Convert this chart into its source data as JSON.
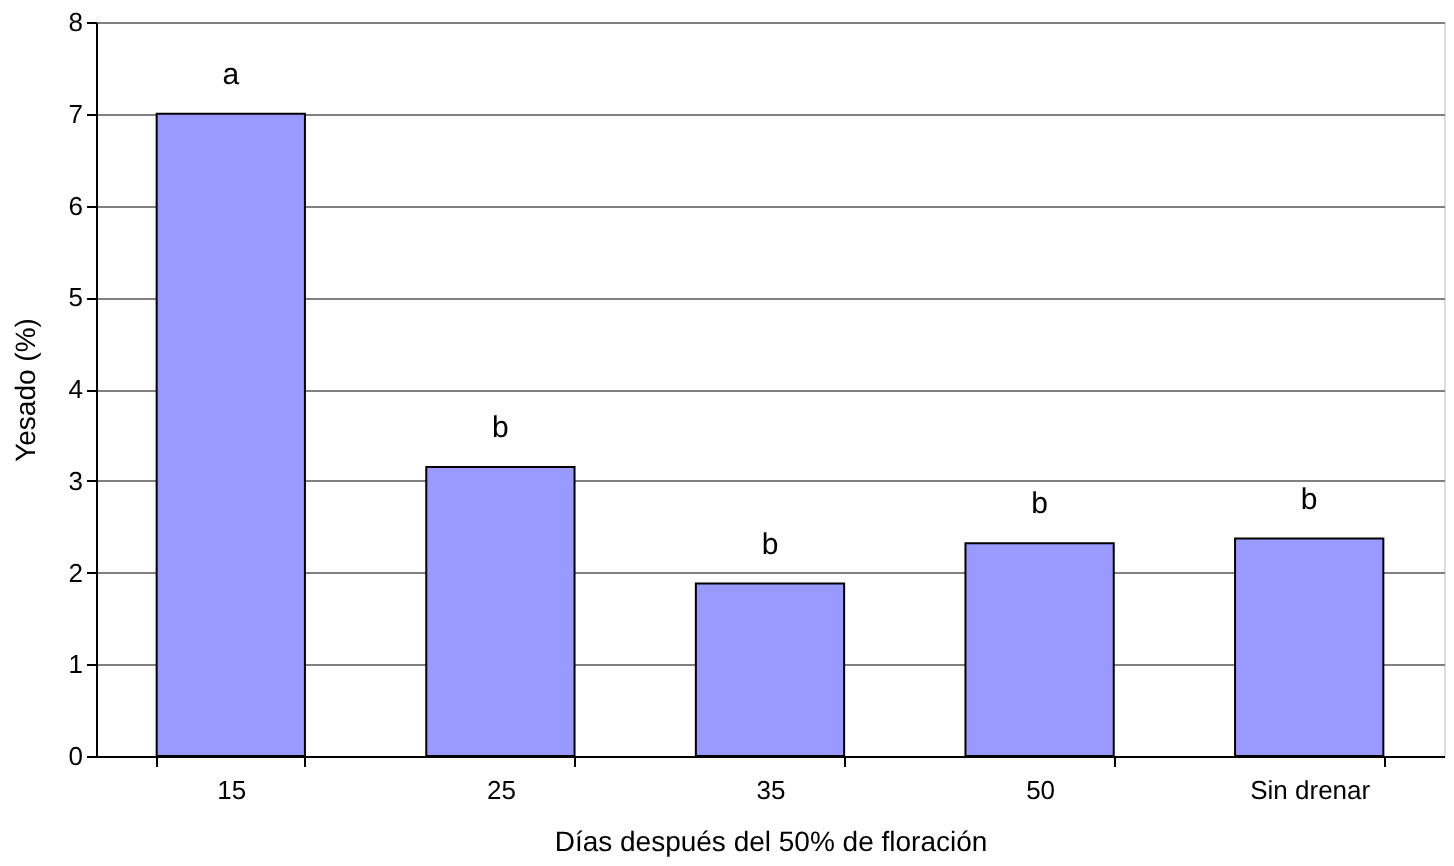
{
  "chart_data": {
    "type": "bar",
    "xlabel": "Días después del 50% de floración",
    "ylabel": "Yesado (%)",
    "categories": [
      "15",
      "25",
      "35",
      "50",
      "Sin drenar"
    ],
    "values": [
      7.0,
      3.15,
      1.88,
      2.32,
      2.37
    ],
    "color": "#9999ff",
    "ylim": [
      0,
      8
    ],
    "yticks": [
      0,
      1,
      2,
      3,
      4,
      5,
      6,
      7,
      8
    ],
    "grid": "y",
    "annotations": [
      {
        "text": "a",
        "x": "15",
        "y": 7.0
      },
      {
        "text": "b",
        "x": "25",
        "y": 3.15
      },
      {
        "text": "b",
        "x": "35",
        "y": 1.88
      },
      {
        "text": "b",
        "x": "50",
        "y": 2.32
      },
      {
        "text": "b",
        "x": "Sin drenar",
        "y": 2.37
      }
    ]
  }
}
